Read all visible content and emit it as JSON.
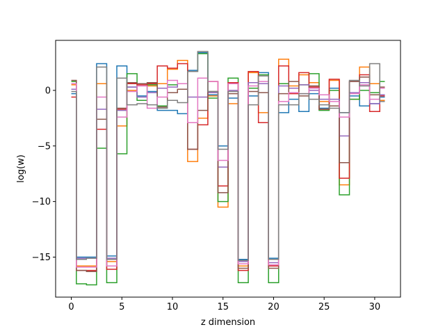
{
  "chart_data": {
    "type": "line",
    "step": true,
    "xlabel": "z dimension",
    "ylabel": "log(w)",
    "xlim": [
      -1.55,
      32.55
    ],
    "ylim": [
      -18.6,
      4.5
    ],
    "xticks": [
      0,
      5,
      10,
      15,
      20,
      25,
      30
    ],
    "yticks": [
      0,
      -5,
      -10,
      -15
    ],
    "grid": false,
    "x": [
      0,
      1,
      2,
      3,
      4,
      5,
      6,
      7,
      8,
      9,
      10,
      11,
      12,
      13,
      14,
      15,
      16,
      17,
      18,
      19,
      20,
      21,
      22,
      23,
      24,
      25,
      26,
      27,
      28,
      29,
      30,
      31
    ],
    "series": [
      {
        "color": "#1f77b4",
        "values": [
          -0.3,
          -15.0,
          -15.0,
          2.4,
          -14.9,
          2.2,
          0.3,
          -0.5,
          -0.1,
          -1.8,
          -1.8,
          -2.1,
          1.8,
          3.4,
          -0.4,
          -5.0,
          -0.7,
          -15.2,
          -0.5,
          1.6,
          -15.1,
          -2.0,
          -0.8,
          -1.9,
          -0.3,
          -1.6,
          0.2,
          -2.0,
          -0.5,
          -1.4,
          -1.2,
          -0.6
        ]
      },
      {
        "color": "#ff7f0e",
        "values": [
          0.5,
          -15.8,
          -15.8,
          0.6,
          -15.4,
          -3.2,
          0.0,
          0.6,
          0.4,
          0.6,
          1.9,
          2.7,
          -6.4,
          -2.5,
          -0.5,
          -10.5,
          -1.2,
          -15.8,
          1.6,
          -2.0,
          -15.8,
          2.8,
          0.4,
          1.4,
          0.7,
          -1.0,
          0.9,
          -8.5,
          -0.8,
          2.1,
          0.6,
          -0.9
        ]
      },
      {
        "color": "#2ca02c",
        "values": [
          0.8,
          -17.4,
          -17.5,
          -5.2,
          -17.3,
          -5.7,
          1.5,
          -0.9,
          0.5,
          -1.4,
          0.5,
          0.6,
          1.7,
          3.3,
          -0.7,
          -10.0,
          1.1,
          -17.3,
          0.2,
          1.4,
          -17.3,
          0.6,
          0.2,
          0.5,
          1.5,
          -1.8,
          0.0,
          -9.4,
          -0.8,
          0.0,
          -0.2,
          0.8
        ]
      },
      {
        "color": "#d62728",
        "values": [
          -0.6,
          -16.2,
          -16.2,
          -3.5,
          -16.1,
          -1.7,
          0.6,
          0.5,
          0.6,
          2.2,
          2.0,
          2.4,
          -5.3,
          -3.1,
          0.8,
          -8.6,
          0.7,
          -16.2,
          1.7,
          -2.9,
          -15.8,
          2.2,
          -0.3,
          1.6,
          0.3,
          -1.7,
          1.0,
          -7.9,
          0.8,
          1.4,
          -1.9,
          -0.5
        ]
      },
      {
        "color": "#9467bd",
        "values": [
          0.1,
          -15.1,
          -15.1,
          -1.7,
          -15.1,
          -1.8,
          0.3,
          -0.6,
          -0.2,
          0.2,
          0.3,
          0.6,
          -0.6,
          -0.6,
          -0.2,
          -6.9,
          0.0,
          -15.4,
          0.7,
          0.6,
          -15.5,
          0.4,
          0.2,
          0.5,
          0.0,
          -0.8,
          -0.8,
          -4.1,
          -0.2,
          0.7,
          -1.2,
          -0.4
        ]
      },
      {
        "color": "#8c564b",
        "values": [
          0.9,
          -16.2,
          -16.3,
          -2.6,
          -15.8,
          -1.6,
          0.7,
          0.6,
          0.7,
          -1.5,
          -0.2,
          0.1,
          -5.3,
          -1.8,
          -0.1,
          -9.2,
          -0.3,
          -16.0,
          -0.1,
          -0.2,
          -16.0,
          -0.3,
          0.8,
          -0.5,
          0.4,
          -1.7,
          -1.4,
          -6.5,
          0.8,
          1.2,
          -0.4,
          0.3
        ]
      },
      {
        "color": "#e377c2",
        "values": [
          0.6,
          -15.9,
          -15.9,
          -0.6,
          -15.8,
          -2.4,
          -0.1,
          0.4,
          -1.6,
          -0.6,
          0.9,
          0.6,
          -2.9,
          1.1,
          0.8,
          -6.3,
          0.6,
          -15.6,
          0.4,
          0.8,
          -15.7,
          -1.0,
          -0.2,
          -0.3,
          0.2,
          -0.4,
          -1.0,
          -2.4,
          -0.3,
          0.5,
          -0.8,
          0.2
        ]
      },
      {
        "color": "#7f7f7f",
        "values": [
          -0.1,
          -15.2,
          -15.1,
          2.1,
          -15.2,
          1.1,
          -1.3,
          -1.2,
          -1.3,
          -1.6,
          -0.9,
          -1.1,
          1.7,
          3.5,
          -0.1,
          -5.3,
          -0.1,
          -15.3,
          -1.3,
          1.3,
          -15.2,
          -1.3,
          -1.3,
          -0.3,
          -0.8,
          -1.3,
          -1.6,
          -2.0,
          0.9,
          0.4,
          2.4,
          -1.0
        ]
      }
    ]
  }
}
